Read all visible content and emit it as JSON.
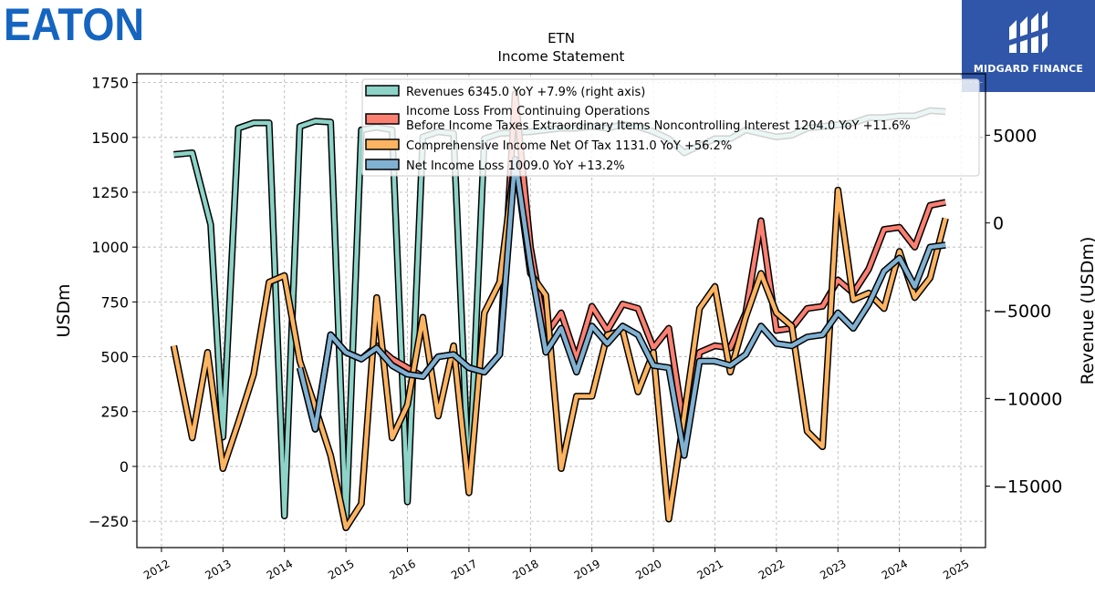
{
  "logos": {
    "left_wordmark": "EATON",
    "right_brand": "MIDGARD FINANCE",
    "left_color": "#1565c0",
    "right_bg": "#2f56a8"
  },
  "chart_data": {
    "type": "line",
    "title": "ETN",
    "subtitle": "Income Statement",
    "ylabel": "USDm",
    "y2label": "Revenue (USDm)",
    "ylim": [
      -370,
      1790
    ],
    "y2lim": [
      -18500,
      8500
    ],
    "yticks": [
      -250,
      0,
      250,
      500,
      750,
      1000,
      1250,
      1500,
      1750
    ],
    "ytick_labels": [
      "−250",
      "0",
      "250",
      "500",
      "750",
      "1000",
      "1250",
      "1500",
      "1750"
    ],
    "y2ticks": [
      -15000,
      -10000,
      -5000,
      0,
      5000
    ],
    "y2tick_labels": [
      "−15000",
      "−10000",
      "−5000",
      "0",
      "5000"
    ],
    "xlim": [
      2011.6,
      2025.4
    ],
    "xticks": [
      2012,
      2013,
      2014,
      2015,
      2016,
      2017,
      2018,
      2019,
      2020,
      2021,
      2022,
      2023,
      2024,
      2025
    ],
    "xtick_labels": [
      "2012",
      "2013",
      "2014",
      "2015",
      "2016",
      "2017",
      "2018",
      "2019",
      "2020",
      "2021",
      "2022",
      "2023",
      "2024",
      "2025"
    ],
    "grid": true,
    "legend_position": "top",
    "series": [
      {
        "name": "Revenues 6345.0 YoY +7.9% (right axis)",
        "legend_label": "Revenues  6345.0 YoY +7.9% (right axis)",
        "axis": "right",
        "color": "#8dd3c7",
        "points": [
          [
            2012.2,
            3900
          ],
          [
            2012.5,
            4000
          ],
          [
            2012.8,
            -100
          ],
          [
            2013.0,
            -12200
          ],
          [
            2013.25,
            5400
          ],
          [
            2013.5,
            5700
          ],
          [
            2013.75,
            5700
          ],
          [
            2014.0,
            -16700
          ],
          [
            2014.25,
            5500
          ],
          [
            2014.5,
            5800
          ],
          [
            2014.75,
            5750
          ],
          [
            2015.0,
            -17200
          ],
          [
            2015.25,
            5300
          ],
          [
            2015.5,
            5450
          ],
          [
            2015.75,
            5300
          ],
          [
            2016.0,
            -15900
          ],
          [
            2016.25,
            4900
          ],
          [
            2016.5,
            5200
          ],
          [
            2016.75,
            5100
          ],
          [
            2017.0,
            -15100
          ],
          [
            2017.25,
            4800
          ],
          [
            2017.5,
            5100
          ],
          [
            2017.75,
            5150
          ],
          [
            2018.0,
            5200
          ],
          [
            2018.25,
            5300
          ],
          [
            2018.5,
            5400
          ],
          [
            2018.75,
            5400
          ],
          [
            2019.0,
            5500
          ],
          [
            2019.25,
            5400
          ],
          [
            2019.5,
            5600
          ],
          [
            2019.75,
            5500
          ],
          [
            2020.0,
            5200
          ],
          [
            2020.25,
            4800
          ],
          [
            2020.5,
            4000
          ],
          [
            2020.75,
            4400
          ],
          [
            2021.0,
            4800
          ],
          [
            2021.25,
            4800
          ],
          [
            2021.5,
            5300
          ],
          [
            2021.75,
            5100
          ],
          [
            2022.0,
            4900
          ],
          [
            2022.25,
            5000
          ],
          [
            2022.5,
            5400
          ],
          [
            2022.75,
            5500
          ],
          [
            2023.0,
            5600
          ],
          [
            2023.25,
            5700
          ],
          [
            2023.5,
            6000
          ],
          [
            2023.75,
            6000
          ],
          [
            2024.0,
            6100
          ],
          [
            2024.25,
            6100
          ],
          [
            2024.5,
            6400
          ],
          [
            2024.75,
            6345
          ]
        ]
      },
      {
        "name": "Income Loss From Continuing Operations Before Income Taxes Extraordinary Items Noncontrolling Interest 1204.0 YoY +11.6%",
        "legend_label_line1": "Income Loss From Continuing Operations",
        "legend_label_line2": "Before Income Taxes Extraordinary Items Noncontrolling Interest  1204.0 YoY +11.6%",
        "axis": "left",
        "color": "#fb8072",
        "points": [
          [
            2014.25,
            450
          ],
          [
            2014.5,
            170
          ],
          [
            2014.75,
            600
          ],
          [
            2015.0,
            520
          ],
          [
            2015.25,
            490
          ],
          [
            2015.5,
            550
          ],
          [
            2015.75,
            490
          ],
          [
            2016.0,
            450
          ],
          [
            2016.25,
            410
          ],
          [
            2016.5,
            500
          ],
          [
            2016.75,
            510
          ],
          [
            2017.0,
            450
          ],
          [
            2017.25,
            430
          ],
          [
            2017.5,
            510
          ],
          [
            2017.75,
            1700
          ],
          [
            2018.0,
            1000
          ],
          [
            2018.25,
            600
          ],
          [
            2018.5,
            700
          ],
          [
            2018.75,
            490
          ],
          [
            2019.0,
            730
          ],
          [
            2019.25,
            620
          ],
          [
            2019.5,
            740
          ],
          [
            2019.75,
            720
          ],
          [
            2020.0,
            540
          ],
          [
            2020.25,
            630
          ],
          [
            2020.5,
            170
          ],
          [
            2020.75,
            520
          ],
          [
            2021.0,
            550
          ],
          [
            2021.25,
            540
          ],
          [
            2021.5,
            700
          ],
          [
            2021.75,
            1120
          ],
          [
            2022.0,
            620
          ],
          [
            2022.25,
            630
          ],
          [
            2022.5,
            720
          ],
          [
            2022.75,
            730
          ],
          [
            2023.0,
            850
          ],
          [
            2023.25,
            790
          ],
          [
            2023.5,
            900
          ],
          [
            2023.75,
            1080
          ],
          [
            2024.0,
            1090
          ],
          [
            2024.25,
            1000
          ],
          [
            2024.5,
            1190
          ],
          [
            2024.75,
            1204
          ]
        ]
      },
      {
        "name": "Comprehensive Income Net Of Tax 1131.0 YoY +56.2%",
        "legend_label": "Comprehensive Income Net Of Tax  1131.0 YoY +56.2%",
        "axis": "left",
        "color": "#fdb462",
        "points": [
          [
            2012.2,
            550
          ],
          [
            2012.5,
            130
          ],
          [
            2012.75,
            520
          ],
          [
            2013.0,
            -10
          ],
          [
            2013.25,
            200
          ],
          [
            2013.5,
            420
          ],
          [
            2013.75,
            840
          ],
          [
            2014.0,
            870
          ],
          [
            2014.25,
            480
          ],
          [
            2014.5,
            270
          ],
          [
            2014.75,
            50
          ],
          [
            2015.0,
            -280
          ],
          [
            2015.25,
            -170
          ],
          [
            2015.5,
            770
          ],
          [
            2015.75,
            130
          ],
          [
            2016.0,
            280
          ],
          [
            2016.25,
            680
          ],
          [
            2016.5,
            230
          ],
          [
            2016.75,
            550
          ],
          [
            2017.0,
            -120
          ],
          [
            2017.25,
            700
          ],
          [
            2017.5,
            840
          ],
          [
            2017.75,
            1400
          ],
          [
            2018.0,
            880
          ],
          [
            2018.25,
            780
          ],
          [
            2018.5,
            -10
          ],
          [
            2018.75,
            320
          ],
          [
            2019.0,
            320
          ],
          [
            2019.25,
            600
          ],
          [
            2019.5,
            620
          ],
          [
            2019.75,
            340
          ],
          [
            2020.0,
            520
          ],
          [
            2020.25,
            -240
          ],
          [
            2020.5,
            230
          ],
          [
            2020.75,
            720
          ],
          [
            2021.0,
            820
          ],
          [
            2021.25,
            430
          ],
          [
            2021.5,
            680
          ],
          [
            2021.75,
            880
          ],
          [
            2022.0,
            700
          ],
          [
            2022.25,
            640
          ],
          [
            2022.5,
            160
          ],
          [
            2022.75,
            90
          ],
          [
            2023.0,
            1260
          ],
          [
            2023.25,
            760
          ],
          [
            2023.5,
            790
          ],
          [
            2023.75,
            720
          ],
          [
            2024.0,
            980
          ],
          [
            2024.25,
            770
          ],
          [
            2024.5,
            860
          ],
          [
            2024.75,
            1131
          ]
        ]
      },
      {
        "name": "Net Income Loss 1009.0 YoY +13.2%",
        "legend_label": "Net Income Loss  1009.0 YoY +13.2%",
        "axis": "left",
        "color": "#80b1d3",
        "points": [
          [
            2014.25,
            450
          ],
          [
            2014.5,
            170
          ],
          [
            2014.75,
            600
          ],
          [
            2015.0,
            520
          ],
          [
            2015.25,
            490
          ],
          [
            2015.5,
            540
          ],
          [
            2015.75,
            460
          ],
          [
            2016.0,
            420
          ],
          [
            2016.25,
            410
          ],
          [
            2016.5,
            500
          ],
          [
            2016.75,
            510
          ],
          [
            2017.0,
            450
          ],
          [
            2017.25,
            430
          ],
          [
            2017.5,
            510
          ],
          [
            2017.75,
            1400
          ],
          [
            2018.0,
            920
          ],
          [
            2018.25,
            520
          ],
          [
            2018.5,
            630
          ],
          [
            2018.75,
            430
          ],
          [
            2019.0,
            640
          ],
          [
            2019.25,
            560
          ],
          [
            2019.5,
            640
          ],
          [
            2019.75,
            600
          ],
          [
            2020.0,
            460
          ],
          [
            2020.25,
            450
          ],
          [
            2020.5,
            50
          ],
          [
            2020.75,
            480
          ],
          [
            2021.0,
            480
          ],
          [
            2021.25,
            460
          ],
          [
            2021.5,
            510
          ],
          [
            2021.75,
            640
          ],
          [
            2022.0,
            560
          ],
          [
            2022.25,
            550
          ],
          [
            2022.5,
            590
          ],
          [
            2022.75,
            600
          ],
          [
            2023.0,
            700
          ],
          [
            2023.25,
            630
          ],
          [
            2023.5,
            740
          ],
          [
            2023.75,
            890
          ],
          [
            2024.0,
            950
          ],
          [
            2024.25,
            820
          ],
          [
            2024.5,
            1000
          ],
          [
            2024.75,
            1009
          ]
        ]
      }
    ]
  }
}
